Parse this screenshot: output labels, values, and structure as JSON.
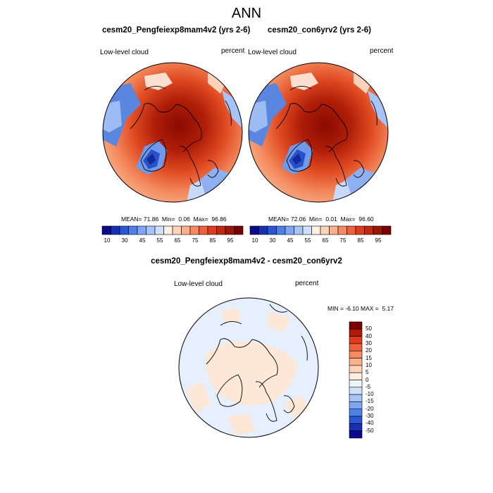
{
  "title": "ANN",
  "panels": [
    {
      "title": "cesm20_Pengfeiexp8mam4v2 (yrs 2-6)",
      "variable": "Low-level cloud",
      "units": "percent",
      "mean_label": "MEAN=",
      "mean": "71.86",
      "min_label": "Min=",
      "min": "0.06",
      "max_label": "Max=",
      "max": "96.86"
    },
    {
      "title": "cesm20_con6yrv2 (yrs 2-6)",
      "variable": "Low-level cloud",
      "units": "percent",
      "mean_label": "MEAN=",
      "mean": "72.06",
      "min_label": "Min=",
      "min": "0.01",
      "max_label": "Max=",
      "max": "96.60"
    }
  ],
  "colorbar_top": {
    "tick_labels": [
      "10",
      "30",
      "45",
      "55",
      "65",
      "75",
      "85",
      "95"
    ],
    "colors": [
      "#0a0a8c",
      "#1530b0",
      "#2b56d8",
      "#4e80ea",
      "#7ea6f2",
      "#a8c4f6",
      "#cfe0fb",
      "#fdf1e6",
      "#fcd3b8",
      "#fbb08c",
      "#f78a63",
      "#f0603d",
      "#e03b1c",
      "#c02810",
      "#9c1505",
      "#7a0000"
    ]
  },
  "diff_panel": {
    "title": "cesm20_Pengfeiexp8mam4v2 - cesm20_con6yrv2",
    "variable": "Low-level cloud",
    "units": "percent",
    "min_label": "MIN =",
    "min": "-6.10",
    "max_label": "MAX =",
    "max": "5.17"
  },
  "colorbar_diff": {
    "tick_labels": [
      "50",
      "40",
      "30",
      "20",
      "15",
      "10",
      "5",
      "0",
      "-5",
      "-10",
      "-15",
      "-20",
      "-30",
      "-40",
      "-50"
    ],
    "colors": [
      "#7a0000",
      "#b01a08",
      "#e03b1c",
      "#f0603d",
      "#f78a63",
      "#fbb08c",
      "#fcd3b8",
      "#fdeee0",
      "#eef4fd",
      "#cfe0fb",
      "#a8c4f6",
      "#7ea6f2",
      "#4e80ea",
      "#2b56d8",
      "#1530b0",
      "#0a0a8c"
    ]
  }
}
